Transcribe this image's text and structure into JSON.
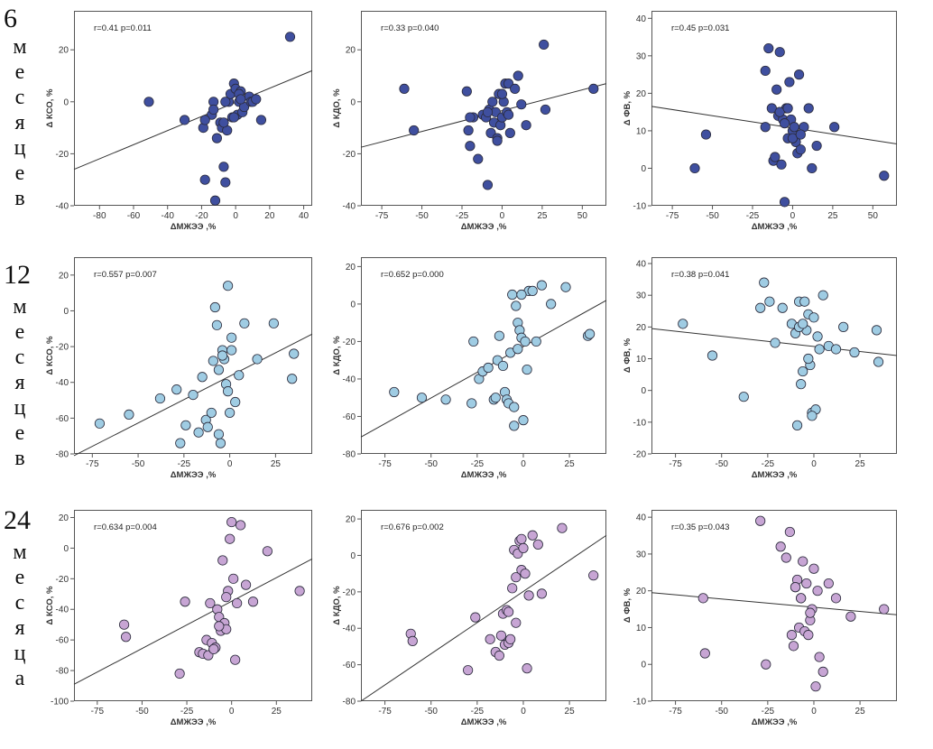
{
  "row_labels": [
    {
      "number": "6",
      "letters": [
        "м",
        "е",
        "с",
        "я",
        "ц",
        "е",
        "в"
      ]
    },
    {
      "number": "12",
      "letters": [
        "м",
        "е",
        "с",
        "я",
        "ц",
        "е",
        "в"
      ]
    },
    {
      "number": "24",
      "letters": [
        "м",
        "е",
        "с",
        "я",
        "ц",
        "а"
      ]
    }
  ],
  "colors": {
    "row1": "#3f4f9f",
    "row2": "#9fcce3",
    "row3": "#c7a5d4",
    "stroke": "#2a2a3a",
    "line": "#333333"
  },
  "chart_data": [
    {
      "type": "scatter",
      "annotation": "r=0.41 p=0.011",
      "xlabel": "ΔМЖЭЭ ,%",
      "ylabel": "Δ КСО, %",
      "xlim": [
        -95,
        45
      ],
      "ylim": [
        -40,
        35
      ],
      "xticks": [
        -80,
        -60,
        -40,
        -20,
        0,
        20,
        40
      ],
      "yticks": [
        -40,
        -20,
        0,
        20
      ],
      "trend": [
        [
          -95,
          -26
        ],
        [
          45,
          12
        ]
      ],
      "x": [
        -51,
        -30,
        -19,
        -18,
        -14,
        -13,
        -12,
        -11,
        -9,
        -8,
        -7,
        -6,
        -5,
        -4,
        -3,
        -2,
        -1,
        0,
        1,
        2,
        3,
        4,
        5,
        8,
        9,
        10,
        12,
        15,
        32,
        -18,
        -13,
        -7,
        -6,
        -1,
        2,
        3
      ],
      "y": [
        0,
        -7,
        -10,
        -30,
        -5,
        0,
        -38,
        -14,
        -8,
        -10,
        -25,
        -31,
        -11,
        0,
        3,
        -6,
        7,
        5,
        -5,
        0,
        4,
        -4,
        -2,
        2,
        0,
        0,
        1,
        -7,
        25,
        -7,
        -3,
        -8,
        0,
        -6,
        3,
        1
      ]
    },
    {
      "type": "scatter",
      "annotation": "r=0.33 p=0.040",
      "xlabel": "ΔМЖЭЭ ,%",
      "ylabel": "Δ КДО, %",
      "xlim": [
        -88,
        65
      ],
      "ylim": [
        -40,
        35
      ],
      "xticks": [
        -75,
        -50,
        -25,
        0,
        25,
        50
      ],
      "yticks": [
        -40,
        -20,
        0,
        20
      ],
      "trend": [
        [
          -88,
          -17.5
        ],
        [
          65,
          7
        ]
      ],
      "x": [
        -61,
        -55,
        -22,
        -21,
        -20,
        -18,
        -15,
        -12,
        -10,
        -9,
        -8,
        -7,
        -6,
        -5,
        -4,
        -3,
        -2,
        -1,
        0,
        1,
        2,
        3,
        4,
        5,
        8,
        10,
        12,
        15,
        26,
        27,
        57,
        -9,
        -3,
        0,
        4,
        -20
      ],
      "y": [
        5,
        -11,
        4,
        -11,
        -17,
        -6,
        -22,
        -5,
        -6,
        -32,
        -3,
        -12,
        0,
        -8,
        -4,
        -14,
        3,
        -9,
        -6,
        0,
        7,
        -4,
        7,
        -12,
        5,
        10,
        -1,
        -9,
        22,
        -3,
        5,
        -4,
        -15,
        3,
        -5,
        -6
      ]
    },
    {
      "type": "scatter",
      "annotation": "r=0.45 p=0.031",
      "xlabel": "ΔМЖЭЭ ,%",
      "ylabel": "Δ ФВ, %",
      "xlim": [
        -88,
        65
      ],
      "ylim": [
        -10,
        42
      ],
      "xticks": [
        -75,
        -50,
        -25,
        0,
        25,
        50
      ],
      "yticks": [
        -10,
        0,
        10,
        20,
        30,
        40
      ],
      "trend": [
        [
          -88,
          16.5
        ],
        [
          65,
          6.5
        ]
      ],
      "x": [
        -61,
        -54,
        -17,
        -15,
        -13,
        -12,
        -11,
        -10,
        -9,
        -8,
        -7,
        -6,
        -5,
        -4,
        -3,
        -2,
        -1,
        0,
        1,
        2,
        3,
        4,
        5,
        7,
        10,
        12,
        15,
        26,
        57,
        -17,
        -8,
        -5,
        -3,
        0,
        5
      ],
      "y": [
        0,
        9,
        26,
        32,
        16,
        2,
        3,
        21,
        14,
        31,
        1,
        13,
        -9,
        16,
        8,
        23,
        13,
        10,
        11,
        7,
        4,
        25,
        5,
        11,
        16,
        0,
        6,
        11,
        -2,
        11,
        15,
        12,
        16,
        8,
        9
      ]
    },
    {
      "type": "scatter",
      "annotation": "r=0.557 p=0.007",
      "xlabel": "ΔМЖЭЭ ,%",
      "ylabel": "Δ КСО, %",
      "xlim": [
        -85,
        45
      ],
      "ylim": [
        -80,
        30
      ],
      "xticks": [
        -75,
        -50,
        -25,
        0,
        25
      ],
      "yticks": [
        -80,
        -60,
        -40,
        -20,
        0,
        20
      ],
      "trend": [
        [
          -85,
          -81
        ],
        [
          45,
          -13
        ]
      ],
      "x": [
        -71,
        -55,
        -38,
        -29,
        -27,
        -24,
        -20,
        -17,
        -15,
        -13,
        -12,
        -10,
        -9,
        -8,
        -7,
        -6,
        -5,
        -4,
        -3,
        -2,
        -1,
        0,
        1,
        3,
        5,
        8,
        15,
        24,
        34,
        35,
        -6,
        -4,
        -1,
        1
      ],
      "y": [
        -63,
        -58,
        -49,
        -44,
        -74,
        -64,
        -47,
        -68,
        -37,
        -61,
        -65,
        -57,
        -28,
        2,
        -8,
        -33,
        -74,
        -22,
        -27,
        -41,
        14,
        -57,
        -15,
        -51,
        -36,
        -7,
        -27,
        -7,
        -38,
        -24,
        -69,
        -25,
        -45,
        -22
      ]
    },
    {
      "type": "scatter",
      "annotation": "r=0.652 p=0.000",
      "xlabel": "ΔМЖЭЭ ,%",
      "ylabel": "Δ КДО, %",
      "xlim": [
        -88,
        45
      ],
      "ylim": [
        -80,
        25
      ],
      "xticks": [
        -75,
        -50,
        -25,
        0,
        25
      ],
      "yticks": [
        -80,
        -60,
        -40,
        -20,
        0,
        20
      ],
      "trend": [
        [
          -88,
          -71
        ],
        [
          45,
          2
        ]
      ],
      "x": [
        -70,
        -55,
        -42,
        -28,
        -27,
        -24,
        -22,
        -19,
        -16,
        -15,
        -14,
        -13,
        -11,
        -10,
        -9,
        -8,
        -7,
        -6,
        -5,
        -4,
        -3,
        -2,
        -1,
        0,
        1,
        2,
        3,
        5,
        7,
        10,
        15,
        23,
        35,
        36,
        -5,
        -3,
        -1
      ],
      "y": [
        -47,
        -50,
        -51,
        -53,
        -20,
        -40,
        -36,
        -34,
        -51,
        -50,
        -30,
        -17,
        -33,
        -47,
        -51,
        -53,
        -26,
        5,
        -55,
        -1,
        -10,
        -14,
        -18,
        -62,
        -20,
        -35,
        7,
        7,
        -20,
        10,
        0,
        9,
        -17,
        -16,
        -65,
        -24,
        5
      ]
    },
    {
      "type": "scatter",
      "annotation": "r=0.38 p=0.041",
      "xlabel": "ΔМЖЭЭ ,%",
      "ylabel": "Δ ФВ, %",
      "xlim": [
        -88,
        45
      ],
      "ylim": [
        -20,
        42
      ],
      "xticks": [
        -75,
        -50,
        -25,
        0,
        25
      ],
      "yticks": [
        -20,
        -10,
        0,
        10,
        20,
        30,
        40
      ],
      "trend": [
        [
          -88,
          19.5
        ],
        [
          45,
          11
        ]
      ],
      "x": [
        -71,
        -55,
        -38,
        -29,
        -27,
        -24,
        -21,
        -17,
        -12,
        -10,
        -9,
        -8,
        -7,
        -6,
        -5,
        -4,
        -3,
        -2,
        -1,
        0,
        1,
        2,
        3,
        5,
        8,
        12,
        16,
        22,
        34,
        35,
        -8,
        -6,
        -3,
        -1
      ],
      "y": [
        21,
        11,
        -2,
        26,
        34,
        28,
        15,
        26,
        21,
        18,
        -11,
        28,
        2,
        6,
        28,
        19,
        24,
        8,
        -7,
        23,
        -6,
        17,
        13,
        30,
        14,
        13,
        20,
        12,
        19,
        9,
        20,
        21,
        10,
        -8
      ]
    },
    {
      "type": "scatter",
      "annotation": "r=0.634 p=0.004",
      "xlabel": "ΔМЖЭЭ ,%",
      "ylabel": "Δ КСО, %",
      "xlim": [
        -88,
        45
      ],
      "ylim": [
        -100,
        25
      ],
      "xticks": [
        -75,
        -50,
        -25,
        0,
        25
      ],
      "yticks": [
        -100,
        -80,
        -60,
        -40,
        -20,
        0,
        20
      ],
      "trend": [
        [
          -88,
          -89
        ],
        [
          45,
          -7
        ]
      ],
      "x": [
        -60,
        -59,
        -29,
        -26,
        -18,
        -16,
        -14,
        -13,
        -12,
        -11,
        -10,
        -9,
        -8,
        -7,
        -6,
        -5,
        -4,
        -3,
        -2,
        -1,
        0,
        1,
        2,
        3,
        5,
        8,
        12,
        20,
        38,
        -10,
        -7,
        -3
      ],
      "y": [
        -50,
        -58,
        -82,
        -35,
        -68,
        -69,
        -60,
        -70,
        -36,
        -62,
        -66,
        -65,
        -40,
        -45,
        -54,
        -8,
        -49,
        -53,
        -28,
        6,
        17,
        -20,
        -73,
        -36,
        15,
        -24,
        -35,
        -2,
        -28,
        -66,
        -51,
        -32
      ]
    },
    {
      "type": "scatter",
      "annotation": "r=0.676 p=0.002",
      "xlabel": "ΔМЖЭЭ ,%",
      "ylabel": "Δ КДО, %",
      "xlim": [
        -88,
        45
      ],
      "ylim": [
        -80,
        25
      ],
      "xticks": [
        -75,
        -50,
        -25,
        0,
        25
      ],
      "yticks": [
        -80,
        -60,
        -40,
        -20,
        0,
        20
      ],
      "trend": [
        [
          -88,
          -80
        ],
        [
          45,
          11
        ]
      ],
      "x": [
        -61,
        -60,
        -30,
        -26,
        -18,
        -15,
        -13,
        -12,
        -11,
        -10,
        -9,
        -8,
        -7,
        -6,
        -5,
        -4,
        -3,
        -2,
        -1,
        0,
        1,
        2,
        3,
        5,
        8,
        10,
        21,
        38,
        -8,
        -4,
        -1
      ],
      "y": [
        -43,
        -47,
        -63,
        -34,
        -46,
        -53,
        -55,
        -44,
        -32,
        -49,
        -30,
        -48,
        -46,
        -18,
        3,
        -37,
        1,
        8,
        -8,
        4,
        -10,
        -62,
        -22,
        11,
        6,
        -21,
        15,
        -11,
        -31,
        -12,
        9
      ]
    },
    {
      "type": "scatter",
      "annotation": "r=0.35 p=0.043",
      "xlabel": "ΔМЖЭЭ ,%",
      "ylabel": "Δ ФВ, %",
      "xlim": [
        -88,
        45
      ],
      "ylim": [
        -10,
        42
      ],
      "xticks": [
        -75,
        -50,
        -25,
        0,
        25
      ],
      "yticks": [
        -10,
        0,
        10,
        20,
        30,
        40
      ],
      "trend": [
        [
          -88,
          19.5
        ],
        [
          45,
          13.5
        ]
      ],
      "x": [
        -60,
        -59,
        -29,
        -26,
        -18,
        -15,
        -13,
        -12,
        -11,
        -10,
        -9,
        -8,
        -7,
        -6,
        -5,
        -4,
        -3,
        -2,
        -1,
        0,
        1,
        2,
        3,
        5,
        8,
        12,
        20,
        38,
        -10,
        -7,
        -2
      ],
      "y": [
        18,
        3,
        39,
        0,
        32,
        29,
        36,
        8,
        5,
        21,
        23,
        10,
        18,
        28,
        9,
        22,
        8,
        12,
        15,
        26,
        -6,
        20,
        2,
        -2,
        22,
        18,
        13,
        15,
        21,
        18,
        14
      ]
    }
  ]
}
